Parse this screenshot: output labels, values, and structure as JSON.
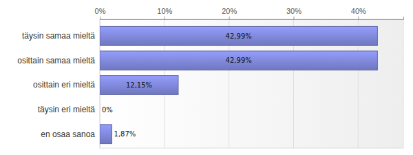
{
  "chart_data": {
    "type": "bar",
    "orientation": "horizontal",
    "categories": [
      "täysin samaa mieltä",
      "osittain samaa mieltä",
      "osittain eri mieltä",
      "täysin eri mieltä",
      "en osaa sanoa"
    ],
    "values": [
      42.99,
      42.99,
      12.15,
      0,
      1.87
    ],
    "value_labels": [
      "42,99%",
      "42,99%",
      "12,15%",
      "0%",
      "1,87%"
    ],
    "data_labels": true,
    "color": "#7c84d4",
    "xlim": [
      0,
      47
    ],
    "xticks": [
      {
        "value": 0,
        "label": "0%"
      },
      {
        "value": 10,
        "label": "10%"
      },
      {
        "value": 20,
        "label": "20%"
      },
      {
        "value": 30,
        "label": "30%"
      },
      {
        "value": 40,
        "label": "40%"
      }
    ],
    "grid": true
  }
}
